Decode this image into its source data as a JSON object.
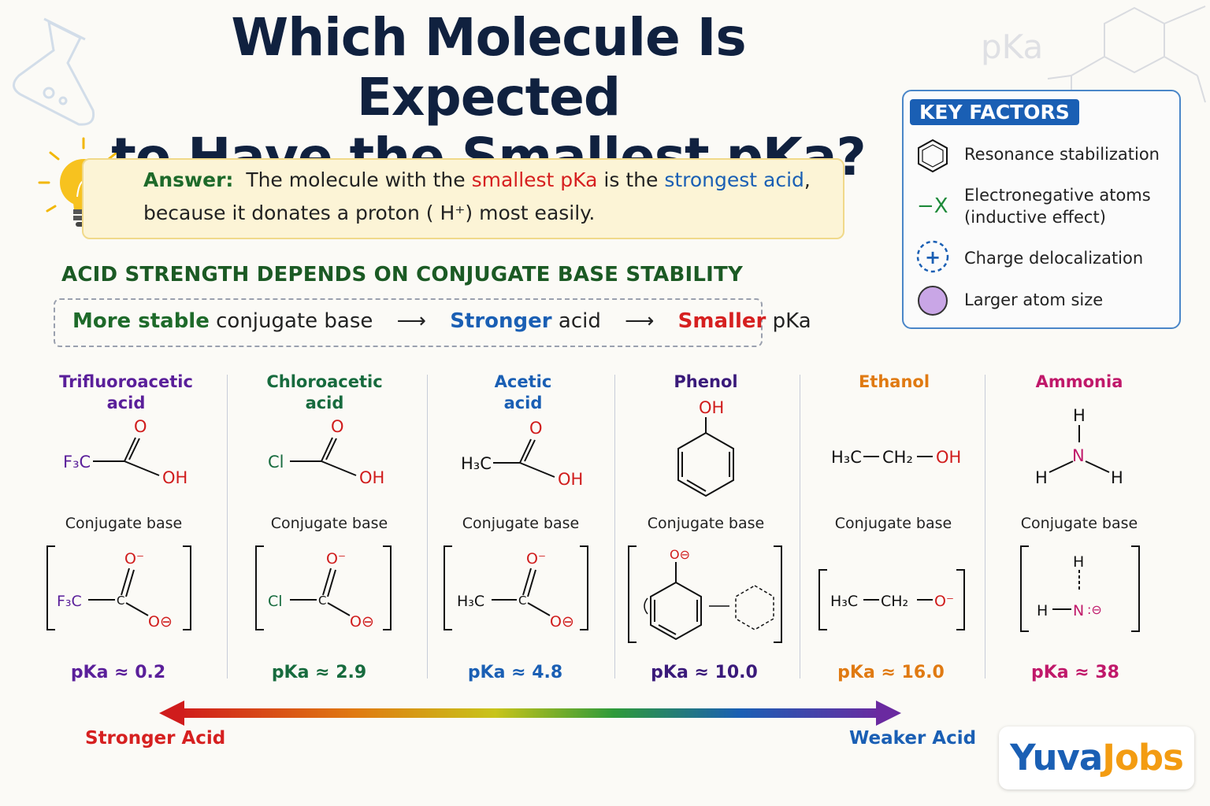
{
  "title_line1": "Which Molecule Is Expected",
  "title_line2": "to Have the Smallest pKa?",
  "answer": {
    "label": "Answer:",
    "text1": "The molecule with the",
    "highlight1": "smallest pKa",
    "text2": "is the",
    "highlight2": "strongest acid",
    "text3": ",",
    "line2": "because it donates a proton ( H⁺) most easily."
  },
  "section_heading": "ACID STRENGTH DEPENDS ON CONJUGATE BASE STABILITY",
  "chain": {
    "part1_bold": "More stable",
    "part1_rest": "conjugate base",
    "part2_bold": "Stronger",
    "part2_rest": "acid",
    "part3_bold": "Smaller",
    "part3_rest": "pKa"
  },
  "key_factors": {
    "title": "KEY FACTORS",
    "items": [
      {
        "label": "Resonance stabilization",
        "icon": "hexagon-icon"
      },
      {
        "label": "Electronegative atoms",
        "label2": "(inductive effect)",
        "icon": "minus-x-icon",
        "symbol": "−X"
      },
      {
        "label": "Charge delocalization",
        "icon": "plus-circle-icon",
        "symbol": "+"
      },
      {
        "label": "Larger atom size",
        "icon": "purple-circle-icon"
      }
    ]
  },
  "molecules": [
    {
      "name1": "Trifluoroacetic",
      "name2": "acid",
      "conj": "Conjugate base",
      "pka": "pKa ≈ 0.2",
      "color": "#5a1f9a"
    },
    {
      "name1": "Chloroacetic",
      "name2": "acid",
      "conj": "Conjugate base",
      "pka": "pKa ≈ 2.9",
      "color": "#176b3e"
    },
    {
      "name1": "Acetic",
      "name2": "acid",
      "conj": "Conjugate base",
      "pka": "pKa ≈ 4.8",
      "color": "#1a5fb4"
    },
    {
      "name1": "Phenol",
      "name2": "",
      "conj": "Conjugate base",
      "pka": "pKa ≈ 10.0",
      "color": "#3a1a7a"
    },
    {
      "name1": "Ethanol",
      "name2": "",
      "conj": "Conjugate base",
      "pka": "pKa ≈ 16.0",
      "color": "#e07a12"
    },
    {
      "name1": "Ammonia",
      "name2": "",
      "conj": "Conjugate base",
      "pka": "pKa ≈ 38",
      "color": "#c0186a"
    }
  ],
  "structures": {
    "F3C": "F₃C",
    "Cl": "Cl",
    "H3C": "H₃C",
    "O": "O",
    "OH": "OH",
    "C": "C",
    "CH2": "CH₂",
    "N": "N",
    "H": "H",
    "O_minus": "O⁻",
    "O_charge": "O⊖"
  },
  "scale": {
    "stronger": "Stronger Acid",
    "weaker": "Weaker Acid"
  },
  "watermark": "pKa",
  "logo": {
    "part1": "Yuva",
    "part2": "Jobs",
    "color1": "#1a5fb4",
    "color2": "#f39c12"
  }
}
